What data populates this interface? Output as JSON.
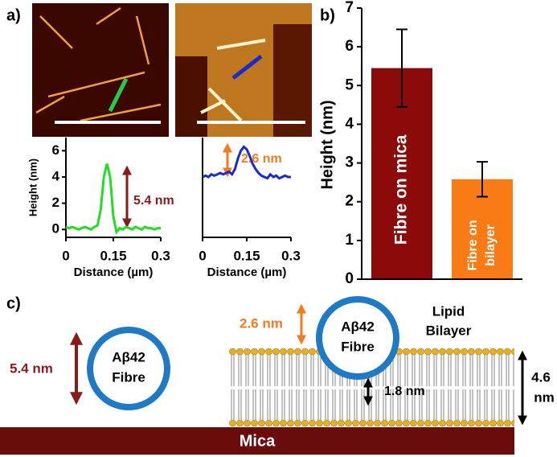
{
  "chart_data": [
    {
      "type": "line",
      "panel": "a)",
      "ylabel": "Height (nm)",
      "xlabel": "Distance (µm)",
      "x": [
        0,
        0.01,
        0.02,
        0.03,
        0.04,
        0.05,
        0.06,
        0.07,
        0.08,
        0.09,
        0.1,
        0.11,
        0.12,
        0.13,
        0.14,
        0.15,
        0.16,
        0.17,
        0.18,
        0.19,
        0.2,
        0.21,
        0.22,
        0.23,
        0.24,
        0.25,
        0.26,
        0.27,
        0.28,
        0.29,
        0.3
      ],
      "series": [
        {
          "color": "#22dd22",
          "values": [
            0.2,
            0.1,
            0.2,
            0.1,
            0,
            0.1,
            0.2,
            0.1,
            0,
            0.2,
            0.3,
            1.5,
            4.0,
            5.0,
            4.0,
            1.0,
            -0.2,
            0.1,
            0,
            0.2,
            0.1,
            0,
            0.2,
            0.1,
            0,
            0.2,
            0.1,
            0.1,
            0,
            0.1,
            0.1
          ]
        }
      ],
      "xlim": [
        0,
        0.3
      ],
      "xticks": [
        0,
        0.15,
        0.3
      ],
      "ylim": [
        -0.6,
        7
      ],
      "yticks": [
        0,
        2,
        4,
        6
      ],
      "annotation": "5.4 nm"
    },
    {
      "type": "line",
      "xlabel": "Distance (µm)",
      "x": [
        0,
        0.01,
        0.02,
        0.03,
        0.04,
        0.05,
        0.06,
        0.07,
        0.08,
        0.09,
        0.1,
        0.11,
        0.12,
        0.13,
        0.14,
        0.15,
        0.16,
        0.17,
        0.18,
        0.19,
        0.2,
        0.21,
        0.22,
        0.23,
        0.24,
        0.25,
        0.26,
        0.27,
        0.28,
        0.29,
        0.3
      ],
      "series": [
        {
          "color": "#1a2bcc",
          "values": [
            4,
            4.1,
            4,
            4.2,
            4.1,
            4.2,
            4.3,
            4.2,
            4.3,
            4.4,
            4.2,
            4.6,
            5.4,
            6.0,
            6.3,
            6.1,
            5.6,
            5.0,
            4.6,
            4.3,
            4.1,
            4.0,
            3.9,
            4.2,
            4.0,
            4.1,
            3.9,
            4.0,
            4.1,
            4.0,
            4.0
          ]
        }
      ],
      "xlim": [
        0,
        0.3
      ],
      "xticks": [
        0,
        0.15,
        0.3
      ],
      "ylim": [
        -0.6,
        7
      ],
      "annotation": "2.6 nm"
    },
    {
      "type": "bar",
      "panel": "b)",
      "ylabel": "Height (nm)",
      "categories": [
        [
          "Fibre on mica"
        ],
        [
          "Fibre on",
          "bilayer"
        ]
      ],
      "values": [
        5.45,
        2.58
      ],
      "errors": [
        1.0,
        0.45
      ],
      "colors": [
        "#8b0a0a",
        "#f97b16"
      ],
      "ylim": [
        0,
        7
      ],
      "yticks": [
        0,
        1,
        2,
        3,
        4,
        5,
        6,
        7
      ]
    }
  ],
  "diagram": {
    "panel": "c)",
    "substrate": "Mica",
    "fibre_label": [
      "Aβ42",
      "Fibre"
    ],
    "mica_height": "5.4 nm",
    "protrusion": "2.6 nm",
    "bilayer_label": [
      "Lipid",
      "Bilayer"
    ],
    "bilayer_thickness": [
      "4.6",
      "nm"
    ],
    "gap": "1.8 nm"
  }
}
